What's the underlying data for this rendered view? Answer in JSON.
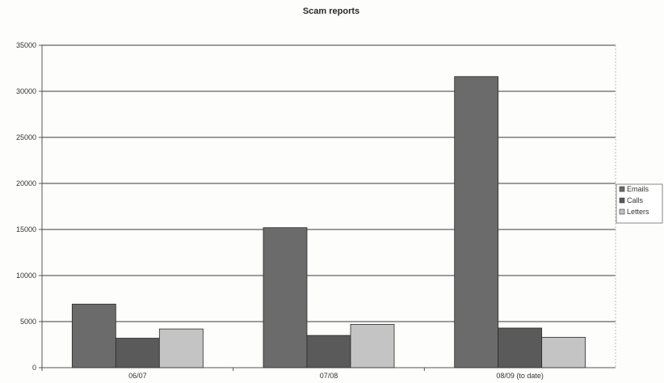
{
  "chart_data": {
    "type": "bar",
    "title": "Scam reports",
    "xlabel": "",
    "ylabel": "",
    "categories": [
      "06/07",
      "07/08",
      "08/09 (to date)"
    ],
    "series": [
      {
        "name": "Emails",
        "values": [
          6900,
          15200,
          31600
        ],
        "color": "#6b6b6b"
      },
      {
        "name": "Calls",
        "values": [
          3200,
          3500,
          4300
        ],
        "color": "#5a5a5a"
      },
      {
        "name": "Letters",
        "values": [
          4200,
          4700,
          3300
        ],
        "color": "#c4c4c4"
      }
    ],
    "ylim": [
      0,
      35000
    ],
    "y_ticks": [
      "0",
      "5000",
      "10000",
      "15000",
      "20000",
      "25000",
      "30000",
      "35000"
    ],
    "grid": true,
    "legend_position": "right"
  }
}
